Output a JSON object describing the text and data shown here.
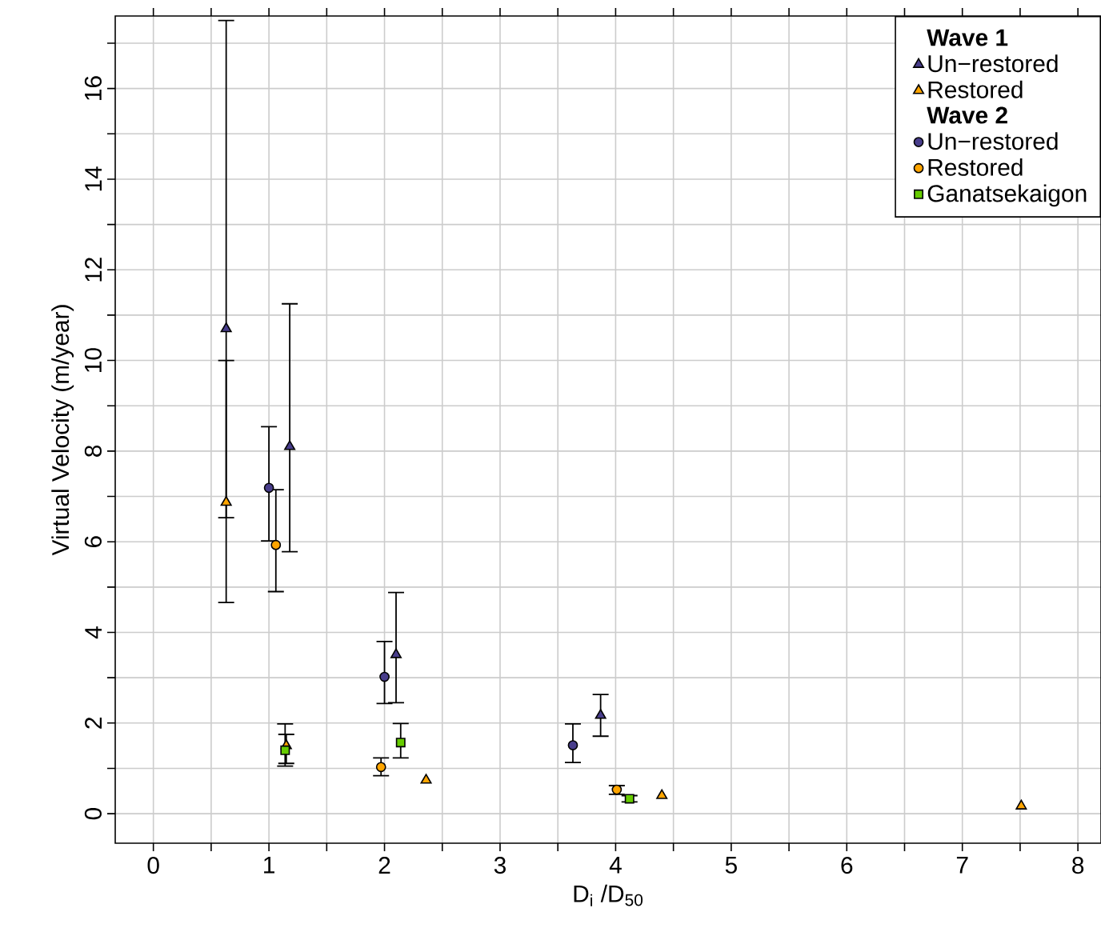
{
  "chart_data": {
    "type": "scatter",
    "xlabel": "D$_{i}$ /D$_{50}$",
    "ylabel": "Virtual Velocity (m/year)",
    "xlim": [
      -0.33,
      8.2
    ],
    "ylim": [
      -0.65,
      17.6
    ],
    "xticks": [
      0,
      {
        "value": 0.5,
        "label": null
      },
      1,
      {
        "value": 1.5,
        "label": null
      },
      2,
      {
        "value": 2.5,
        "label": null
      },
      3,
      {
        "value": 3.5,
        "label": null
      },
      4,
      {
        "value": 4.5,
        "label": null
      },
      5,
      {
        "value": 5.5,
        "label": null
      },
      6,
      {
        "value": 6.5,
        "label": null
      },
      7,
      {
        "value": 7.5,
        "label": null
      },
      8
    ],
    "yticks": [
      0,
      {
        "value": 1,
        "label": null
      },
      2,
      {
        "value": 3,
        "label": null
      },
      4,
      {
        "value": 5,
        "label": null
      },
      6,
      {
        "value": 7,
        "label": null
      },
      8,
      {
        "value": 9,
        "label": null
      },
      10,
      {
        "value": 11,
        "label": null
      },
      12,
      {
        "value": 13,
        "label": null
      },
      14,
      {
        "value": 15,
        "label": null
      },
      16,
      {
        "value": 17,
        "label": null
      }
    ],
    "grid": true,
    "legend": "top right",
    "annotations": [
      "Wave 1",
      "Wave 2"
    ],
    "series": [
      {
        "name": "Un−restored",
        "marker": "triangle",
        "color": "#483d8b",
        "x": [
          0.63,
          1.18,
          2.1,
          3.87
        ],
        "values": [
          10.7,
          8.1,
          3.51,
          2.17
        ],
        "errors": [
          [
            4.66,
            17.5
          ],
          [
            5.78,
            11.25
          ],
          [
            2.45,
            4.88
          ],
          [
            1.71,
            2.63
          ]
        ]
      },
      {
        "name": "Restored",
        "marker": "triangle",
        "color": "#ffa500",
        "x": [
          0.63,
          1.15,
          2.36,
          4.4,
          7.51
        ],
        "values": [
          6.87,
          1.5,
          0.74,
          0.4,
          0.17
        ],
        "errors": [
          [
            6.53,
            10.0
          ],
          [
            1.11,
            1.75
          ],
          null,
          null,
          null
        ]
      },
      {
        "name": "Un−restored",
        "marker": "circle",
        "color": "#483d8b",
        "x": [
          1.0,
          2.0,
          3.63
        ],
        "values": [
          7.19,
          3.02,
          1.51
        ],
        "errors": [
          [
            6.02,
            8.54
          ],
          [
            2.43,
            3.8
          ],
          [
            1.13,
            1.98
          ]
        ]
      },
      {
        "name": "Restored",
        "marker": "circle",
        "color": "#ffa500",
        "x": [
          1.06,
          1.97,
          4.01
        ],
        "values": [
          5.93,
          1.03,
          0.53
        ],
        "errors": [
          [
            4.9,
            7.15
          ],
          [
            0.84,
            1.23
          ],
          [
            0.43,
            0.62
          ]
        ]
      },
      {
        "name": "Ganatsekaigon",
        "marker": "square",
        "color": "#66cc00",
        "x": [
          1.14,
          2.14,
          4.12
        ],
        "values": [
          1.4,
          1.57,
          0.33
        ],
        "errors": [
          [
            1.05,
            1.98
          ],
          [
            1.23,
            1.99
          ],
          [
            0.26,
            0.4
          ]
        ]
      }
    ]
  }
}
